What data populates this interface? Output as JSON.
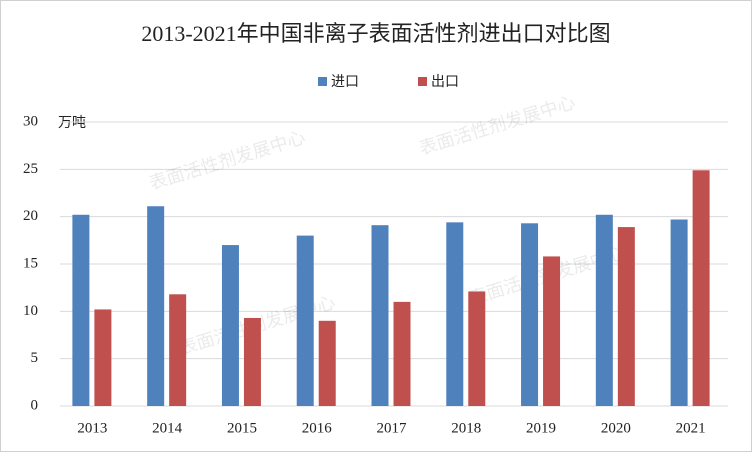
{
  "chart_data": {
    "type": "bar",
    "title": "2013-2021年中国非离子表面活性剂进出口对比图",
    "y_unit": "万吨",
    "watermark": "表面活性剂发展中心",
    "categories": [
      "2013",
      "2014",
      "2015",
      "2016",
      "2017",
      "2018",
      "2019",
      "2020",
      "2021"
    ],
    "series": [
      {
        "name": "进口",
        "color": "#4f81bd",
        "values": [
          20.2,
          21.1,
          17.0,
          18.0,
          19.1,
          19.4,
          19.3,
          20.2,
          19.7
        ]
      },
      {
        "name": "出口",
        "color": "#c0504d",
        "values": [
          10.2,
          11.8,
          9.3,
          9.0,
          11.0,
          12.1,
          15.8,
          18.9,
          24.9
        ]
      }
    ],
    "ylim": [
      0,
      30
    ],
    "yticks": [
      0,
      5,
      10,
      15,
      20,
      25,
      30
    ],
    "grid": true,
    "legend": "top"
  }
}
